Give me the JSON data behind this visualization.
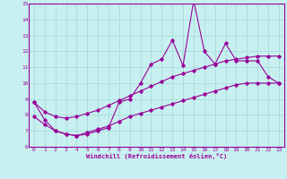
{
  "xlabel": "Windchill (Refroidissement éolien,°C)",
  "bg_color": "#c8f0f0",
  "line_color": "#990099",
  "grid_color": "#a0d8d8",
  "x_min": 0,
  "x_max": 23,
  "y_min": 6,
  "y_max": 15,
  "x_ticks": [
    0,
    1,
    2,
    3,
    4,
    5,
    6,
    7,
    8,
    9,
    10,
    11,
    12,
    13,
    14,
    15,
    16,
    17,
    18,
    19,
    20,
    21,
    22,
    23
  ],
  "y_ticks": [
    6,
    7,
    8,
    9,
    10,
    11,
    12,
    13,
    14,
    15
  ],
  "main_y": [
    8.8,
    7.7,
    7.0,
    6.8,
    6.7,
    6.8,
    7.0,
    7.2,
    8.8,
    9.0,
    10.0,
    11.2,
    11.5,
    12.7,
    11.1,
    15.2,
    12.0,
    11.2,
    12.5,
    11.4,
    11.4,
    11.4,
    10.4,
    10.0
  ],
  "upper_y": [
    8.8,
    8.2,
    7.9,
    7.8,
    7.9,
    8.1,
    8.3,
    8.6,
    8.9,
    9.2,
    9.5,
    9.8,
    10.1,
    10.4,
    10.6,
    10.8,
    11.0,
    11.2,
    11.4,
    11.5,
    11.6,
    11.7,
    11.7,
    11.7
  ],
  "lower_y": [
    7.9,
    7.4,
    7.0,
    6.8,
    6.7,
    6.9,
    7.1,
    7.3,
    7.6,
    7.9,
    8.1,
    8.3,
    8.5,
    8.7,
    8.9,
    9.1,
    9.3,
    9.5,
    9.7,
    9.9,
    10.0,
    10.0,
    10.0,
    10.0
  ]
}
